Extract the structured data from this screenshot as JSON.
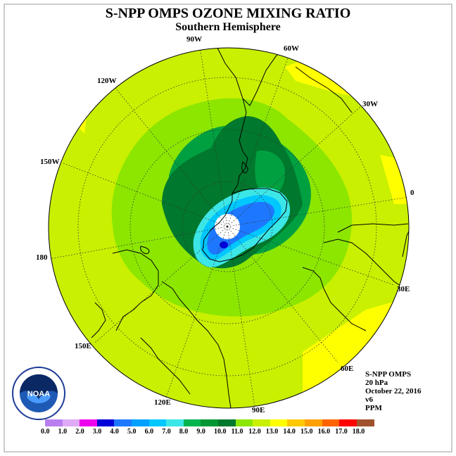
{
  "title": "S-NPP OMPS OZONE MIXING RATIO",
  "subtitle": "Southern Hemisphere",
  "longitude_labels": [
    "90W",
    "60W",
    "120W",
    "30W",
    "150W",
    "0",
    "180",
    "30E",
    "150E",
    "60E",
    "120E",
    "90E"
  ],
  "info": {
    "instrument": "S-NPP OMPS",
    "level": "20 hPa",
    "date": "October 22, 2016",
    "version": "v6",
    "units": "PPM"
  },
  "colorbar": {
    "ticks": [
      "0.0",
      "1.0",
      "2.0",
      "3.0",
      "4.0",
      "5.0",
      "6.0",
      "7.0",
      "8.0",
      "9.0",
      "10.0",
      "11.0",
      "12.0",
      "13.0",
      "14.0",
      "15.0",
      "16.0",
      "17.0",
      "18.0"
    ],
    "colors": [
      "#b97ff0",
      "#dfaaf5",
      "#ee00ee",
      "#0000d8",
      "#1e78ff",
      "#00a0ff",
      "#00c8ff",
      "#3ce6e6",
      "#00b450",
      "#009633",
      "#00782d",
      "#8ce600",
      "#c8f000",
      "#ffff00",
      "#ffc800",
      "#ffa000",
      "#ff6400",
      "#ff0000",
      "#a0522d"
    ]
  },
  "logo_text": "NOAA",
  "colors": {
    "background_field": "#c8f000",
    "polar_hole": "#ffffff"
  }
}
